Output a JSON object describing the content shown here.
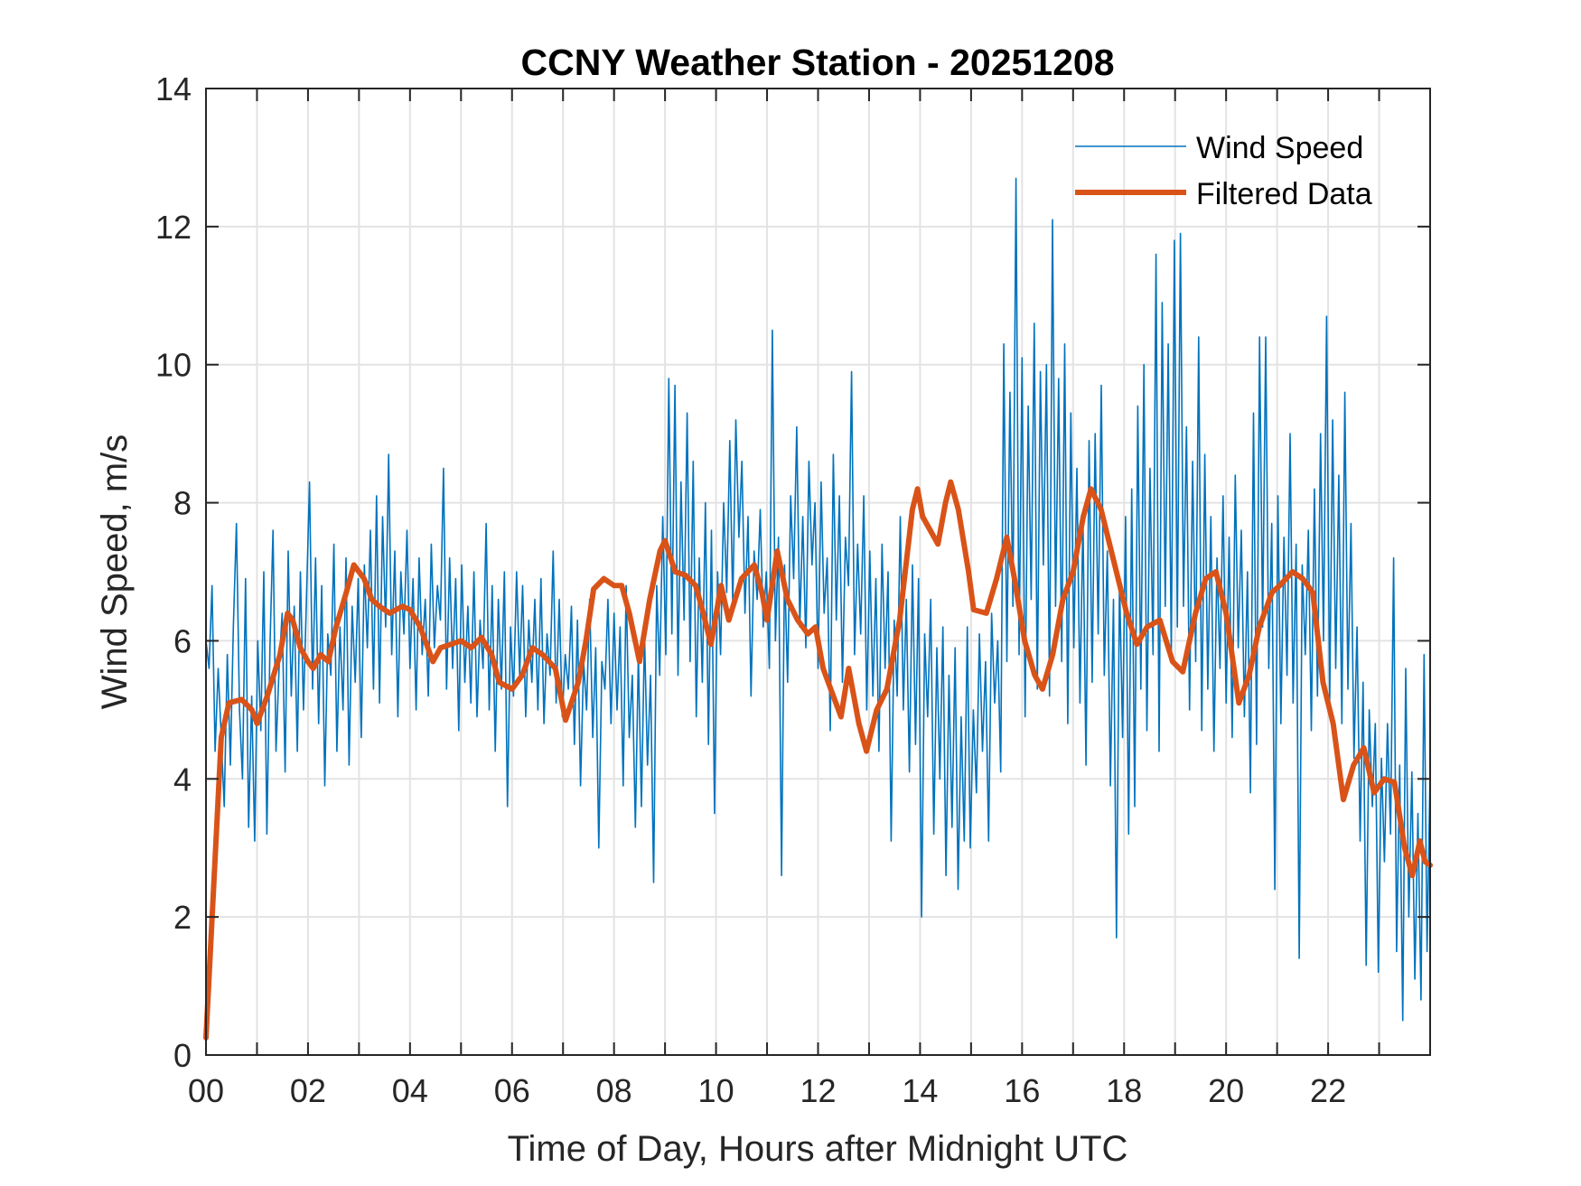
{
  "chart_data": {
    "type": "line",
    "title": "CCNY Weather Station - 20251208",
    "xlabel": "Time of Day, Hours after Midnight UTC",
    "ylabel": "Wind Speed, m/s",
    "xlim": [
      0,
      24
    ],
    "ylim": [
      0,
      14
    ],
    "xticks": [
      0,
      2,
      4,
      6,
      8,
      10,
      12,
      14,
      16,
      18,
      20,
      22
    ],
    "xtick_labels": [
      "00",
      "02",
      "04",
      "06",
      "08",
      "10",
      "12",
      "14",
      "16",
      "18",
      "20",
      "22"
    ],
    "xminor_step": 1,
    "yticks": [
      0,
      2,
      4,
      6,
      8,
      10,
      12,
      14
    ],
    "ytick_labels": [
      "0",
      "2",
      "4",
      "6",
      "8",
      "10",
      "12",
      "14"
    ],
    "grid": true,
    "legend": {
      "location": "top-right",
      "boxed": false
    },
    "series": [
      {
        "name": "Wind Speed",
        "color": "#0072BD",
        "style": "thin-line",
        "x_step_hours": 0.05,
        "values": [
          6.0,
          5.6,
          6.8,
          4.4,
          5.6,
          4.6,
          3.6,
          5.8,
          4.2,
          6.2,
          7.7,
          5.0,
          4.0,
          6.9,
          3.3,
          5.2,
          3.1,
          6.0,
          4.7,
          7.0,
          3.2,
          5.9,
          7.6,
          4.4,
          5.6,
          6.4,
          4.1,
          7.3,
          5.2,
          6.5,
          4.4,
          7.0,
          5.0,
          6.6,
          8.3,
          5.3,
          7.2,
          4.8,
          6.8,
          3.9,
          6.1,
          5.5,
          7.4,
          4.4,
          6.2,
          5.0,
          7.2,
          4.2,
          6.5,
          5.4,
          6.9,
          4.6,
          7.1,
          5.9,
          7.6,
          5.3,
          8.1,
          5.1,
          7.8,
          6.2,
          8.7,
          5.8,
          7.3,
          4.9,
          7.0,
          6.1,
          7.6,
          5.6,
          6.9,
          5.0,
          7.2,
          5.8,
          6.6,
          5.2,
          7.4,
          5.9,
          6.8,
          6.3,
          8.5,
          5.3,
          7.2,
          5.6,
          6.9,
          4.7,
          7.1,
          5.4,
          6.5,
          5.1,
          7.0,
          4.9,
          6.3,
          5.6,
          7.7,
          5.0,
          6.8,
          4.4,
          6.6,
          5.3,
          7.0,
          3.6,
          6.2,
          5.2,
          7.0,
          5.5,
          6.8,
          4.9,
          6.3,
          5.4,
          6.6,
          5.0,
          6.9,
          4.8,
          6.1,
          5.5,
          7.3,
          5.1,
          6.6,
          4.9,
          5.8,
          5.3,
          6.5,
          4.5,
          6.3,
          3.9,
          5.7,
          5.0,
          6.6,
          4.6,
          5.9,
          3.0,
          5.7,
          5.3,
          6.6,
          4.8,
          6.4,
          5.0,
          6.2,
          3.9,
          6.8,
          4.6,
          5.5,
          3.3,
          5.8,
          3.6,
          6.1,
          4.2,
          5.5,
          2.5,
          6.8,
          5.5,
          7.8,
          5.8,
          9.8,
          6.1,
          9.7,
          5.5,
          8.3,
          6.3,
          9.3,
          5.7,
          8.6,
          4.9,
          7.2,
          5.4,
          8.0,
          4.5,
          7.6,
          3.5,
          7.0,
          5.8,
          8.0,
          6.7,
          8.9,
          6.5,
          9.2,
          7.5,
          8.6,
          6.4,
          7.8,
          5.2,
          7.3,
          6.6,
          7.9,
          6.2,
          7.0,
          5.6,
          10.5,
          6.0,
          7.5,
          2.6,
          7.1,
          5.4,
          8.1,
          6.9,
          9.1,
          6.2,
          7.8,
          5.9,
          8.6,
          7.1,
          8.0,
          5.6,
          8.3,
          6.4,
          7.2,
          4.7,
          8.7,
          6.3,
          8.1,
          5.4,
          7.5,
          6.8,
          9.9,
          5.8,
          7.4,
          6.1,
          8.1,
          5.0,
          7.3,
          5.2,
          6.9,
          4.4,
          7.4,
          5.6,
          7.0,
          3.1,
          6.3,
          5.2,
          7.8,
          5.0,
          6.6,
          4.1,
          7.1,
          4.5,
          6.9,
          2.0,
          6.1,
          4.9,
          6.6,
          3.2,
          5.9,
          4.0,
          6.2,
          2.6,
          5.5,
          3.3,
          5.9,
          2.4,
          4.9,
          3.1,
          6.2,
          3.0,
          5.0,
          3.8,
          6.1,
          4.4,
          5.7,
          3.1,
          6.4,
          5.1,
          6.0,
          4.1,
          10.3,
          5.7,
          9.6,
          6.5,
          12.7,
          5.8,
          10.1,
          4.9,
          9.4,
          6.6,
          10.6,
          5.3,
          9.9,
          7.1,
          10.0,
          5.2,
          12.1,
          6.5,
          9.8,
          5.7,
          10.3,
          4.8,
          9.3,
          5.9,
          8.5,
          5.1,
          7.8,
          4.2,
          8.9,
          5.4,
          9.0,
          6.1,
          9.7,
          5.5,
          7.3,
          3.9,
          6.6,
          1.7,
          6.9,
          4.6,
          7.8,
          3.2,
          8.2,
          3.6,
          9.4,
          5.3,
          10.0,
          4.7,
          8.5,
          5.8,
          11.6,
          4.4,
          10.9,
          6.5,
          10.3,
          5.8,
          11.8,
          6.2,
          11.9,
          6.5,
          9.1,
          5.0,
          8.6,
          5.7,
          10.4,
          4.7,
          8.7,
          5.3,
          7.8,
          4.4,
          7.2,
          5.6,
          8.1,
          5.1,
          7.5,
          4.6,
          8.4,
          5.9,
          7.6,
          4.9,
          7.0,
          3.8,
          9.3,
          4.5,
          10.4,
          6.2,
          10.4,
          5.6,
          7.7,
          2.4,
          8.1,
          4.8,
          7.5,
          5.5,
          9.0,
          5.1,
          7.4,
          1.4,
          7.1,
          5.8,
          7.6,
          4.7,
          8.2,
          5.2,
          9.0,
          6.0,
          10.7,
          5.1,
          9.2,
          5.6,
          8.4,
          4.8,
          9.6,
          5.3,
          7.7,
          4.3,
          6.2,
          3.1,
          5.4,
          1.3,
          5.0,
          3.6,
          4.8,
          1.2,
          4.3,
          2.8,
          4.8,
          3.2,
          7.2,
          1.5,
          4.2,
          0.5,
          5.6,
          2.0,
          4.1,
          1.1,
          3.5,
          0.8,
          5.8,
          1.5,
          4.1
        ]
      },
      {
        "name": "Filtered Data",
        "color": "#D95319",
        "style": "thick-line",
        "points": [
          [
            0.0,
            0.25
          ],
          [
            0.3,
            4.6
          ],
          [
            0.45,
            5.1
          ],
          [
            0.7,
            5.15
          ],
          [
            0.9,
            5.0
          ],
          [
            1.0,
            4.8
          ],
          [
            1.2,
            5.2
          ],
          [
            1.45,
            5.8
          ],
          [
            1.6,
            6.4
          ],
          [
            1.7,
            6.3
          ],
          [
            1.85,
            5.9
          ],
          [
            2.0,
            5.7
          ],
          [
            2.1,
            5.6
          ],
          [
            2.25,
            5.8
          ],
          [
            2.4,
            5.7
          ],
          [
            2.55,
            6.2
          ],
          [
            2.75,
            6.7
          ],
          [
            2.9,
            7.1
          ],
          [
            3.1,
            6.9
          ],
          [
            3.25,
            6.6
          ],
          [
            3.4,
            6.5
          ],
          [
            3.6,
            6.4
          ],
          [
            3.85,
            6.5
          ],
          [
            4.0,
            6.45
          ],
          [
            4.2,
            6.2
          ],
          [
            4.45,
            5.7
          ],
          [
            4.6,
            5.9
          ],
          [
            4.8,
            5.95
          ],
          [
            5.0,
            6.0
          ],
          [
            5.2,
            5.9
          ],
          [
            5.4,
            6.05
          ],
          [
            5.6,
            5.8
          ],
          [
            5.75,
            5.4
          ],
          [
            6.0,
            5.3
          ],
          [
            6.2,
            5.5
          ],
          [
            6.4,
            5.9
          ],
          [
            6.6,
            5.8
          ],
          [
            6.85,
            5.6
          ],
          [
            7.05,
            4.85
          ],
          [
            7.3,
            5.4
          ],
          [
            7.45,
            6.0
          ],
          [
            7.6,
            6.75
          ],
          [
            7.8,
            6.9
          ],
          [
            8.0,
            6.8
          ],
          [
            8.15,
            6.8
          ],
          [
            8.3,
            6.4
          ],
          [
            8.5,
            5.7
          ],
          [
            8.7,
            6.6
          ],
          [
            8.9,
            7.3
          ],
          [
            9.0,
            7.45
          ],
          [
            9.2,
            7.0
          ],
          [
            9.4,
            6.95
          ],
          [
            9.6,
            6.8
          ],
          [
            9.75,
            6.4
          ],
          [
            9.9,
            5.95
          ],
          [
            10.1,
            6.8
          ],
          [
            10.25,
            6.3
          ],
          [
            10.5,
            6.9
          ],
          [
            10.75,
            7.1
          ],
          [
            10.9,
            6.7
          ],
          [
            11.0,
            6.3
          ],
          [
            11.2,
            7.3
          ],
          [
            11.4,
            6.6
          ],
          [
            11.6,
            6.3
          ],
          [
            11.8,
            6.1
          ],
          [
            11.95,
            6.2
          ],
          [
            12.1,
            5.6
          ],
          [
            12.3,
            5.2
          ],
          [
            12.45,
            4.9
          ],
          [
            12.6,
            5.6
          ],
          [
            12.8,
            4.8
          ],
          [
            12.95,
            4.4
          ],
          [
            13.15,
            5.0
          ],
          [
            13.35,
            5.3
          ],
          [
            13.6,
            6.3
          ],
          [
            13.85,
            7.9
          ],
          [
            13.95,
            8.2
          ],
          [
            14.05,
            7.8
          ],
          [
            14.2,
            7.6
          ],
          [
            14.35,
            7.4
          ],
          [
            14.5,
            8.0
          ],
          [
            14.6,
            8.3
          ],
          [
            14.75,
            7.9
          ],
          [
            14.95,
            7.0
          ],
          [
            15.05,
            6.45
          ],
          [
            15.3,
            6.4
          ],
          [
            15.5,
            6.9
          ],
          [
            15.7,
            7.5
          ],
          [
            15.85,
            6.9
          ],
          [
            16.05,
            6.0
          ],
          [
            16.25,
            5.5
          ],
          [
            16.4,
            5.3
          ],
          [
            16.6,
            5.8
          ],
          [
            16.8,
            6.6
          ],
          [
            17.0,
            7.0
          ],
          [
            17.2,
            7.8
          ],
          [
            17.35,
            8.2
          ],
          [
            17.55,
            7.9
          ],
          [
            17.75,
            7.3
          ],
          [
            17.95,
            6.7
          ],
          [
            18.05,
            6.4
          ],
          [
            18.25,
            5.95
          ],
          [
            18.45,
            6.2
          ],
          [
            18.7,
            6.3
          ],
          [
            18.95,
            5.7
          ],
          [
            19.15,
            5.55
          ],
          [
            19.4,
            6.4
          ],
          [
            19.6,
            6.9
          ],
          [
            19.8,
            7.0
          ],
          [
            20.0,
            6.4
          ],
          [
            20.25,
            5.1
          ],
          [
            20.45,
            5.5
          ],
          [
            20.65,
            6.2
          ],
          [
            20.9,
            6.7
          ],
          [
            21.05,
            6.8
          ],
          [
            21.3,
            7.0
          ],
          [
            21.5,
            6.9
          ],
          [
            21.7,
            6.7
          ],
          [
            21.9,
            5.4
          ],
          [
            22.1,
            4.8
          ],
          [
            22.3,
            3.7
          ],
          [
            22.5,
            4.2
          ],
          [
            22.7,
            4.45
          ],
          [
            22.9,
            3.8
          ],
          [
            23.1,
            4.0
          ],
          [
            23.3,
            3.95
          ],
          [
            23.5,
            3.0
          ],
          [
            23.65,
            2.6
          ],
          [
            23.8,
            3.1
          ],
          [
            23.9,
            2.8
          ],
          [
            24.0,
            2.75
          ]
        ]
      }
    ]
  }
}
